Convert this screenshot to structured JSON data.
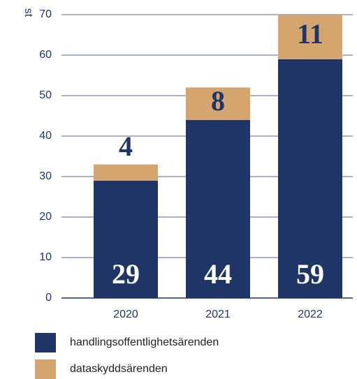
{
  "chart_data": {
    "type": "stacked_bar",
    "y_label": "st",
    "categories": [
      "2020",
      "2021",
      "2022"
    ],
    "series": [
      {
        "name": "handlingsoffentlighetsärenden",
        "color": "#1f3566",
        "values": [
          29,
          44,
          59
        ]
      },
      {
        "name": "dataskyddsärenden",
        "color": "#d4a56e",
        "values": [
          4,
          8,
          11
        ]
      }
    ],
    "ylim": [
      0,
      70
    ],
    "yticks": [
      0,
      10,
      20,
      30,
      40,
      50,
      60,
      70
    ],
    "grid": true,
    "legend": "bottom"
  }
}
